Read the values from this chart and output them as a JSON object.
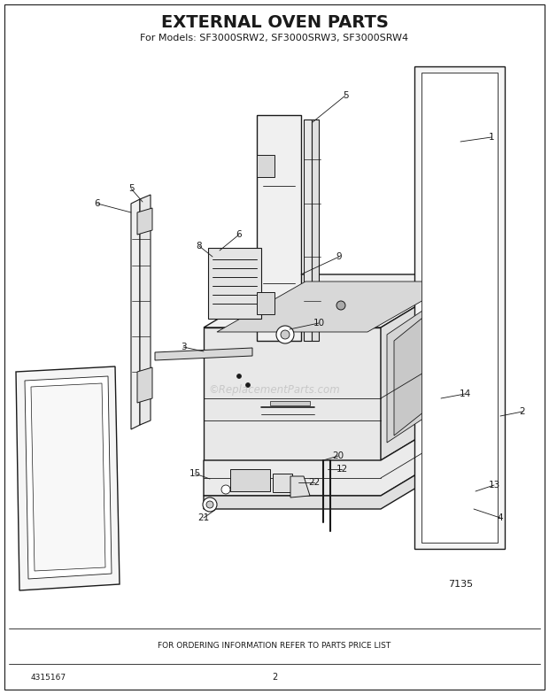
{
  "title": "EXTERNAL OVEN PARTS",
  "subtitle": "For Models: SF3000SRW2, SF3000SRW3, SF3000SRW4",
  "footer_text": "FOR ORDERING INFORMATION REFER TO PARTS PRICE LIST",
  "part_number": "4315167",
  "page_number": "2",
  "diagram_code": "7135",
  "bg_color": "#ffffff",
  "line_color": "#1a1a1a",
  "watermark": "©ReplacementParts.com",
  "title_fontsize": 14,
  "subtitle_fontsize": 8,
  "label_fontsize": 7.5,
  "footer_fontsize": 6.5
}
